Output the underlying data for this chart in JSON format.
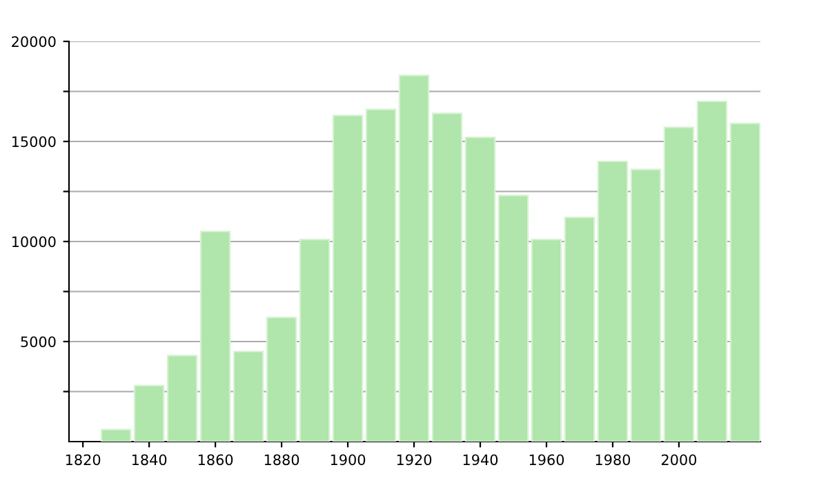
{
  "chart_data": {
    "type": "bar",
    "x": [
      1830,
      1840,
      1850,
      1860,
      1870,
      1880,
      1890,
      1900,
      1910,
      1920,
      1930,
      1940,
      1950,
      1960,
      1970,
      1980,
      1990,
      2000,
      2010,
      2020
    ],
    "values": [
      600,
      2800,
      4300,
      10500,
      4500,
      6200,
      10100,
      16300,
      16600,
      18300,
      16400,
      15200,
      12300,
      10100,
      11200,
      14000,
      13600,
      15700,
      17000,
      15900
    ],
    "color": "#b0e5ab",
    "xlim": [
      1815.8,
      2024.6
    ],
    "xticks": [
      1820,
      1840,
      1860,
      1880,
      1900,
      1920,
      1940,
      1960,
      1980,
      2000
    ],
    "ylim": [
      0,
      20000
    ],
    "yticks": [
      {
        "value": 2500,
        "label": null
      },
      5000,
      {
        "value": 7500,
        "label": null
      },
      10000,
      {
        "value": 12500,
        "label": null
      },
      15000,
      {
        "value": 17500,
        "label": null
      },
      20000
    ],
    "grid": "y"
  }
}
